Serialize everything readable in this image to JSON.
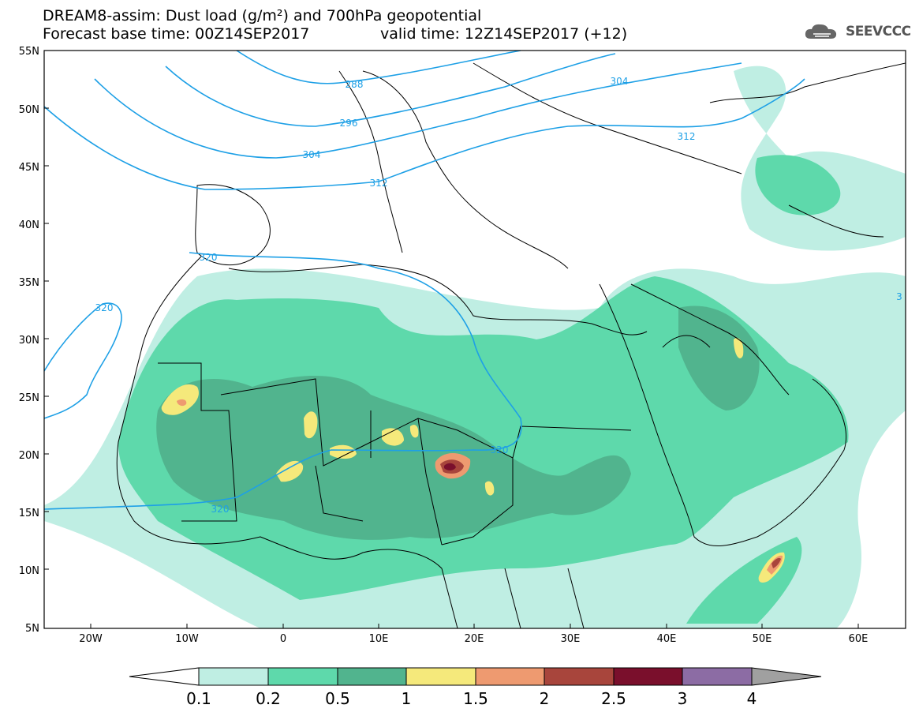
{
  "header": {
    "title_line1": "DREAM8-assim: Dust load (g/m²) and 700hPa geopotential",
    "base_time": "Forecast base time: 00Z14SEP2017",
    "valid_time": "valid time: 12Z14SEP2017 (+12)"
  },
  "logo": {
    "text": "SEEVCCC",
    "icon": "cloud-icon"
  },
  "map": {
    "lat_labels": [
      "55N",
      "50N",
      "45N",
      "40N",
      "35N",
      "30N",
      "25N",
      "20N",
      "15N",
      "10N",
      "5N"
    ],
    "lon_labels": [
      "20W",
      "10W",
      "0",
      "10E",
      "20E",
      "30E",
      "40E",
      "50E",
      "60E"
    ],
    "contour_labels": [
      {
        "text": "288"
      },
      {
        "text": "296"
      },
      {
        "text": "304"
      },
      {
        "text": "304"
      },
      {
        "text": "312"
      },
      {
        "text": "312"
      },
      {
        "text": "320"
      },
      {
        "text": "320"
      },
      {
        "text": "320"
      },
      {
        "text": "320"
      },
      {
        "text": "3"
      }
    ]
  },
  "legend": {
    "ticks": [
      "0.1",
      "0.2",
      "0.5",
      "1",
      "1.5",
      "2",
      "2.5",
      "3",
      "4"
    ],
    "colors": [
      "#bfeee3",
      "#5ed9ab",
      "#51b48e",
      "#f5e97b",
      "#ee9a70",
      "#a8453c",
      "#7a0f2c",
      "#8c6ca4"
    ],
    "under_color": "#ffffff",
    "over_color": "#a0a0a0"
  },
  "colors": {
    "contour": "#1ea0e6",
    "border": "#000000"
  }
}
